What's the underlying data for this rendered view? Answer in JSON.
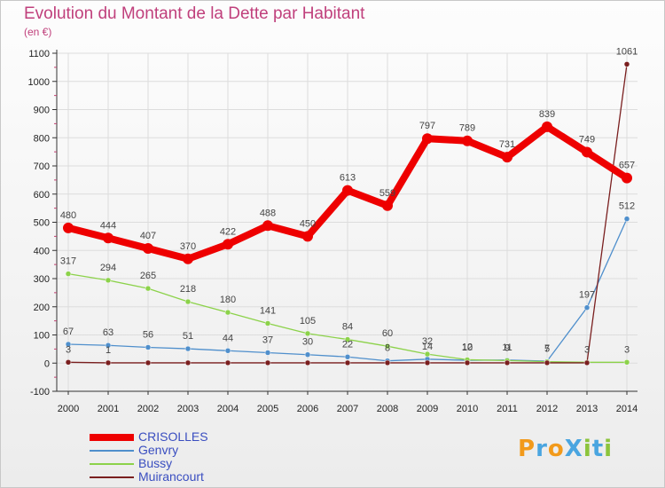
{
  "header": {
    "title": "Evolution du Montant de la Dette par Habitant",
    "subtitle": "(en €)"
  },
  "logo": {
    "text": "Proxiti",
    "letters": [
      {
        "ch": "P",
        "color": "#f29a1b"
      },
      {
        "ch": "r",
        "color": "#4aa5e0"
      },
      {
        "ch": "o",
        "color": "#f29a1b"
      },
      {
        "ch": "X",
        "color": "#4aa5e0"
      },
      {
        "ch": "i",
        "color": "#8cc43c"
      },
      {
        "ch": "t",
        "color": "#4aa5e0"
      },
      {
        "ch": "i",
        "color": "#8cc43c"
      }
    ]
  },
  "chart_data": {
    "type": "line",
    "title": "Evolution du Montant de la Dette par Habitant",
    "subtitle": "(en €)",
    "x": [
      2000,
      2001,
      2002,
      2003,
      2004,
      2005,
      2006,
      2007,
      2008,
      2009,
      2010,
      2011,
      2012,
      2013,
      2014
    ],
    "ylim": [
      -100,
      1100
    ],
    "yticks": [
      -100,
      0,
      100,
      200,
      300,
      400,
      500,
      600,
      700,
      800,
      900,
      1000,
      1100
    ],
    "legend_position": "bottom-left",
    "series": [
      {
        "name": "CRISOLLES",
        "color": "#ee0000",
        "width": "thick",
        "values": [
          480,
          444,
          407,
          370,
          422,
          488,
          450,
          613,
          559,
          797,
          789,
          731,
          839,
          749,
          657
        ],
        "labels": [
          "480",
          "444",
          "407",
          "370",
          "422",
          "488",
          "450",
          "613",
          "559",
          "797",
          "789",
          "731",
          "839",
          "749",
          "657"
        ]
      },
      {
        "name": "Genvry",
        "color": "#4f8fcc",
        "width": "thin",
        "values": [
          67,
          63,
          56,
          51,
          44,
          37,
          30,
          22,
          8,
          14,
          10,
          11,
          7,
          197,
          512
        ],
        "labels": [
          "67",
          "63",
          "56",
          "51",
          "44",
          "37",
          "30",
          "22",
          "8",
          "14",
          "10",
          "11",
          "7",
          "197",
          "512"
        ]
      },
      {
        "name": "Bussy",
        "color": "#8cd24a",
        "width": "thin",
        "values": [
          317,
          294,
          265,
          218,
          180,
          141,
          105,
          84,
          60,
          32,
          12,
          9,
          5,
          3,
          3
        ],
        "labels": [
          "317",
          "294",
          "265",
          "218",
          "180",
          "141",
          "105",
          "84",
          "60",
          "32",
          "12",
          "9",
          "5",
          "3",
          "3"
        ]
      },
      {
        "name": "Muirancourt",
        "color": "#7a1f1f",
        "width": "thin",
        "values": [
          3,
          1,
          1,
          1,
          1,
          1,
          1,
          1,
          1,
          1,
          1,
          1,
          1,
          1,
          1061
        ],
        "labels": [
          "3",
          "1",
          "",
          "",
          "",
          "",
          "",
          "",
          "",
          "",
          "",
          "",
          "",
          "",
          "1061"
        ]
      }
    ]
  }
}
